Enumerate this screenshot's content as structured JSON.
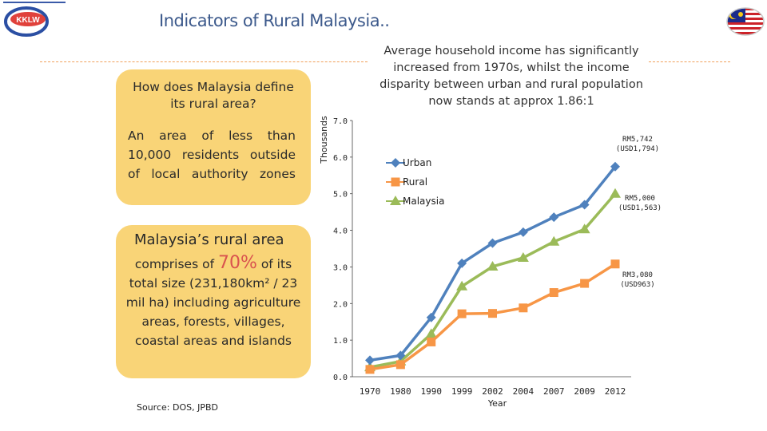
{
  "header": {
    "title": "Indicators of Rural Malaysia..",
    "logo_text": "KKLW"
  },
  "headline": "Average household income has significantly increased from 1970s, whilst the income disparity between urban and rural population now stands at approx 1.86:1",
  "box_definition": {
    "question": "How does Malaysia define its rural area?",
    "answer": "An area of less than 10,000 residents outside of local authority zones"
  },
  "box_rural": {
    "title": "Malaysia’s rural area",
    "body_prefix": "comprises of",
    "percent": "70%",
    "body_suffix": "of its",
    "body_rest": "total size (231,180km² / 23 mil ha) including agriculture areas, forests, villages, coastal areas and islands"
  },
  "source": "Source: DOS, JPBD",
  "colors": {
    "urban": "#4f81bd",
    "rural": "#f79646",
    "malaysia": "#9bbb59",
    "box": "#f9d477",
    "title": "#3d5a8c",
    "dash": "#f0a05a"
  },
  "chart_data": {
    "type": "line",
    "categories": [
      "1970",
      "1980",
      "1990",
      "1999",
      "2002",
      "2004",
      "2007",
      "2009",
      "2012"
    ],
    "ylabel": "Thousands",
    "xlabel": "Year",
    "ylim": [
      0,
      7
    ],
    "yticks": [
      "0.0",
      "1.0",
      "2.0",
      "3.0",
      "4.0",
      "5.0",
      "6.0",
      "7.0"
    ],
    "legend_position": "top-left",
    "series": [
      {
        "name": "Urban",
        "marker": "diamond",
        "values": [
          0.45,
          0.58,
          1.62,
          3.1,
          3.65,
          3.95,
          4.36,
          4.7,
          5.74
        ]
      },
      {
        "name": "Rural",
        "marker": "square",
        "values": [
          0.2,
          0.33,
          0.95,
          1.72,
          1.73,
          1.88,
          2.3,
          2.55,
          3.08
        ]
      },
      {
        "name": "Malaysia",
        "marker": "triangle",
        "values": [
          0.26,
          0.42,
          1.17,
          2.47,
          3.01,
          3.25,
          3.69,
          4.03,
          5.0
        ]
      }
    ],
    "annotations": [
      {
        "lines": [
          "RM5,742",
          "(USD1,794)"
        ]
      },
      {
        "lines": [
          "RM5,000",
          "(USD1,563)"
        ]
      },
      {
        "lines": [
          "RM3,080",
          "(USD963)"
        ]
      }
    ]
  }
}
